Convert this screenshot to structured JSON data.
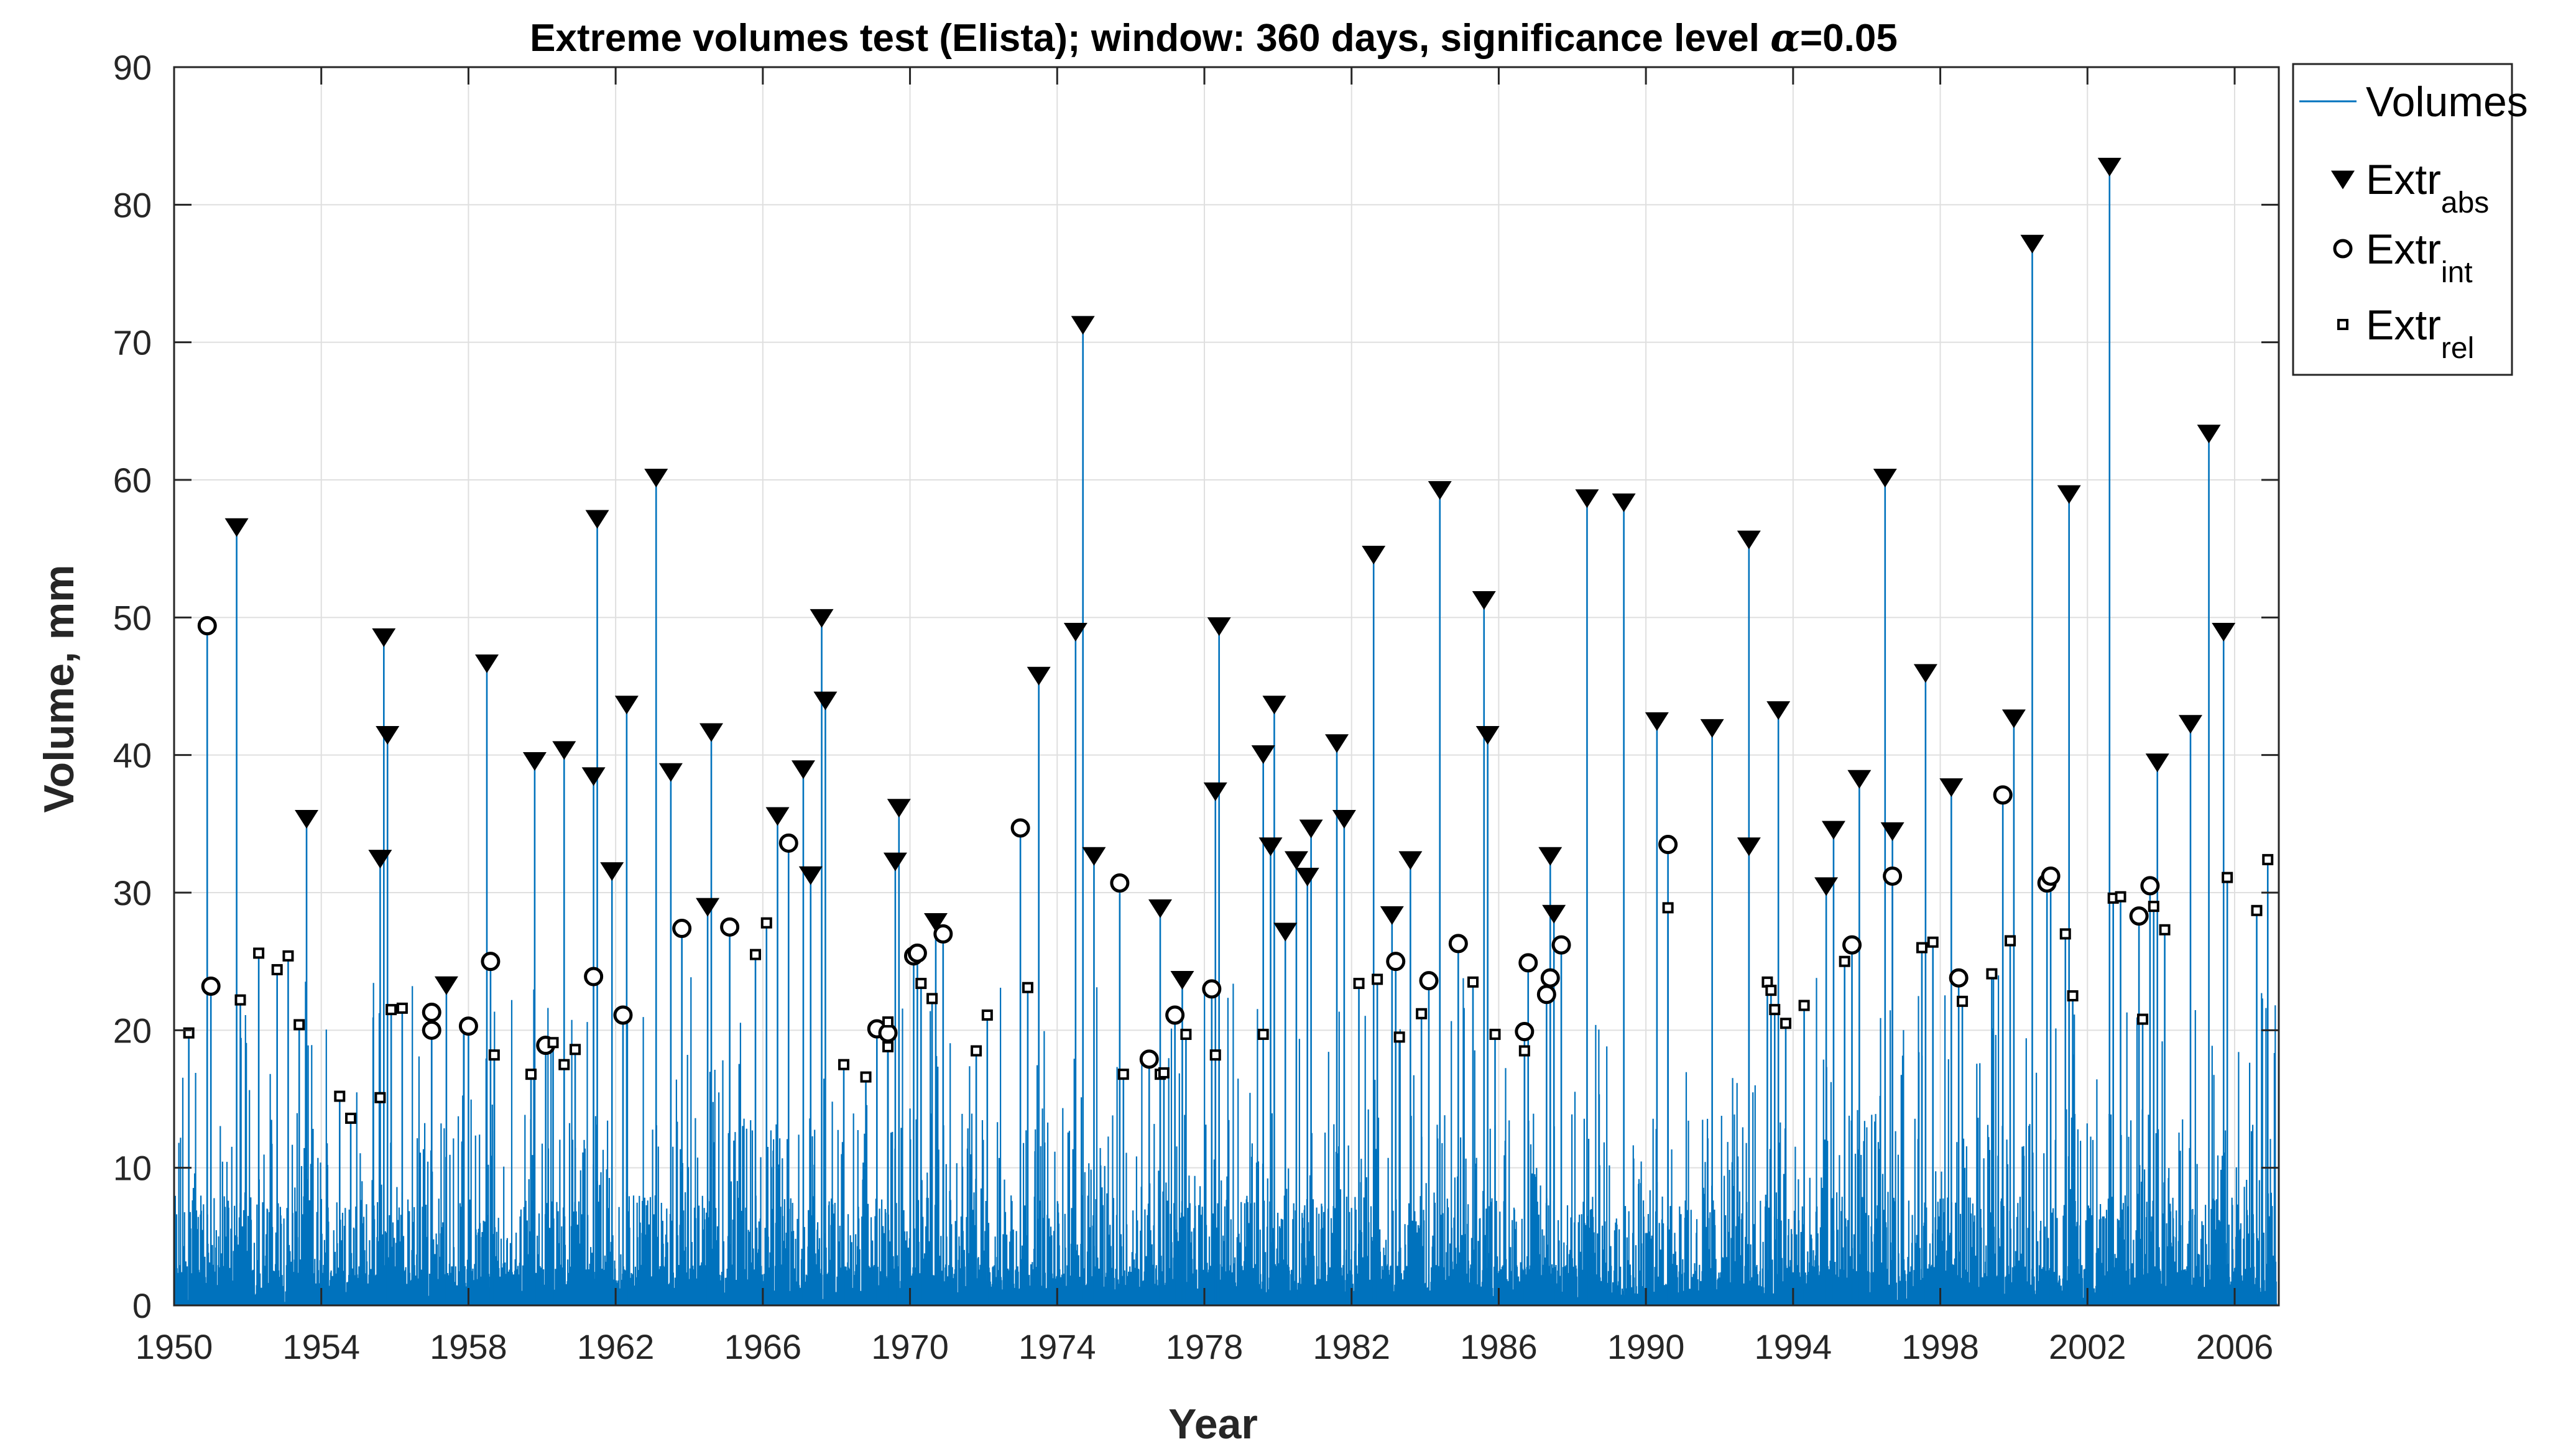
{
  "chart_data": {
    "type": "line",
    "title_parts": [
      "Extreme volumes test (Elista); window: 360 days, significance level ",
      "α",
      "=0.05"
    ],
    "xlabel": "Year",
    "ylabel": "Volume, mm",
    "xlim": [
      1950,
      2007.2
    ],
    "ylim": [
      0,
      90
    ],
    "xticks": [
      1950,
      1954,
      1958,
      1962,
      1966,
      1970,
      1974,
      1978,
      1982,
      1986,
      1990,
      1994,
      1998,
      2002,
      2006
    ],
    "yticks": [
      0,
      10,
      20,
      30,
      40,
      50,
      60,
      70,
      80,
      90
    ],
    "grid": true,
    "legend_position": "outside-top-right",
    "colors": {
      "volumes": "#0072bd",
      "markers": "#000000"
    },
    "legend": [
      {
        "base": "Volumes",
        "sub": "",
        "marker": "line"
      },
      {
        "base": "Extr",
        "sub": "abs",
        "marker": "triangle-down"
      },
      {
        "base": "Extr",
        "sub": "int",
        "marker": "circle"
      },
      {
        "base": "Extr",
        "sub": "rel",
        "marker": "square"
      }
    ],
    "series": [
      {
        "name": "Extr_abs",
        "marker": "triangle-down",
        "points": [
          [
            1951.7,
            56.6
          ],
          [
            1953.6,
            35.4
          ],
          [
            1955.6,
            32.5
          ],
          [
            1955.7,
            48.6
          ],
          [
            1955.8,
            41.5
          ],
          [
            1957.4,
            23.3
          ],
          [
            1958.5,
            46.7
          ],
          [
            1959.8,
            39.6
          ],
          [
            1960.6,
            40.4
          ],
          [
            1961.4,
            38.5
          ],
          [
            1961.5,
            57.2
          ],
          [
            1961.9,
            31.6
          ],
          [
            1962.3,
            43.7
          ],
          [
            1963.1,
            60.2
          ],
          [
            1963.5,
            38.8
          ],
          [
            1964.5,
            29.0
          ],
          [
            1964.6,
            41.7
          ],
          [
            1966.4,
            35.6
          ],
          [
            1967.1,
            39.0
          ],
          [
            1967.3,
            31.3
          ],
          [
            1967.6,
            50.0
          ],
          [
            1967.7,
            44.0
          ],
          [
            1969.6,
            32.3
          ],
          [
            1969.7,
            36.2
          ],
          [
            1970.7,
            27.9
          ],
          [
            1973.5,
            45.8
          ],
          [
            1974.5,
            49.0
          ],
          [
            1974.7,
            71.3
          ],
          [
            1975.0,
            32.7
          ],
          [
            1976.8,
            28.9
          ],
          [
            1977.4,
            23.7
          ],
          [
            1978.3,
            37.4
          ],
          [
            1978.4,
            49.4
          ],
          [
            1979.6,
            40.1
          ],
          [
            1979.8,
            33.4
          ],
          [
            1979.9,
            43.7
          ],
          [
            1980.2,
            27.2
          ],
          [
            1980.5,
            32.4
          ],
          [
            1980.8,
            31.2
          ],
          [
            1980.9,
            34.7
          ],
          [
            1981.6,
            40.9
          ],
          [
            1981.8,
            35.4
          ],
          [
            1982.6,
            54.6
          ],
          [
            1983.1,
            28.4
          ],
          [
            1983.6,
            32.4
          ],
          [
            1984.4,
            59.3
          ],
          [
            1985.6,
            51.3
          ],
          [
            1985.7,
            41.5
          ],
          [
            1987.4,
            32.7
          ],
          [
            1987.5,
            28.5
          ],
          [
            1988.4,
            58.7
          ],
          [
            1989.4,
            58.4
          ],
          [
            1990.3,
            42.5
          ],
          [
            1991.8,
            42.0
          ],
          [
            1992.8,
            33.4
          ],
          [
            1992.8,
            55.7
          ],
          [
            1993.6,
            43.3
          ],
          [
            1994.9,
            30.5
          ],
          [
            1995.1,
            34.6
          ],
          [
            1995.8,
            38.3
          ],
          [
            1996.5,
            60.2
          ],
          [
            1996.7,
            34.5
          ],
          [
            1997.6,
            46.0
          ],
          [
            1998.3,
            37.7
          ],
          [
            2000.0,
            42.7
          ],
          [
            2000.5,
            77.2
          ],
          [
            2001.5,
            59.0
          ],
          [
            2002.6,
            82.8
          ],
          [
            2003.9,
            39.5
          ],
          [
            2004.8,
            42.3
          ],
          [
            2005.3,
            63.4
          ],
          [
            2005.7,
            49.0
          ]
        ]
      },
      {
        "name": "Extr_int",
        "marker": "circle",
        "points": [
          [
            1950.9,
            49.4
          ],
          [
            1951.0,
            23.2
          ],
          [
            1957.0,
            20.0
          ],
          [
            1957.0,
            21.3
          ],
          [
            1958.0,
            20.3
          ],
          [
            1958.6,
            25.0
          ],
          [
            1960.1,
            18.9
          ],
          [
            1961.4,
            23.9
          ],
          [
            1962.2,
            21.1
          ],
          [
            1963.8,
            27.4
          ],
          [
            1965.1,
            27.5
          ],
          [
            1966.7,
            33.6
          ],
          [
            1969.1,
            20.1
          ],
          [
            1969.4,
            19.8
          ],
          [
            1970.1,
            25.4
          ],
          [
            1970.2,
            25.6
          ],
          [
            1970.9,
            27.0
          ],
          [
            1973.0,
            34.7
          ],
          [
            1975.7,
            30.7
          ],
          [
            1976.5,
            17.9
          ],
          [
            1977.2,
            21.1
          ],
          [
            1978.2,
            23.0
          ],
          [
            1983.2,
            25.0
          ],
          [
            1984.1,
            23.6
          ],
          [
            1984.9,
            26.3
          ],
          [
            1986.7,
            19.9
          ],
          [
            1986.8,
            24.9
          ],
          [
            1987.3,
            22.6
          ],
          [
            1987.4,
            23.8
          ],
          [
            1987.7,
            26.2
          ],
          [
            1990.6,
            33.5
          ],
          [
            1995.6,
            26.2
          ],
          [
            1996.7,
            31.2
          ],
          [
            1998.5,
            23.8
          ],
          [
            1999.7,
            37.1
          ],
          [
            2000.9,
            30.7
          ],
          [
            2001.0,
            31.2
          ],
          [
            2003.4,
            28.3
          ],
          [
            2003.7,
            30.5
          ]
        ]
      },
      {
        "name": "Extr_rel",
        "marker": "square",
        "points": [
          [
            1950.4,
            19.8
          ],
          [
            1951.8,
            22.2
          ],
          [
            1952.3,
            25.6
          ],
          [
            1952.8,
            24.4
          ],
          [
            1953.1,
            25.4
          ],
          [
            1953.4,
            20.4
          ],
          [
            1954.5,
            15.2
          ],
          [
            1954.8,
            13.6
          ],
          [
            1955.6,
            15.1
          ],
          [
            1955.9,
            21.5
          ],
          [
            1956.2,
            21.6
          ],
          [
            1958.7,
            18.2
          ],
          [
            1959.7,
            16.8
          ],
          [
            1960.3,
            19.1
          ],
          [
            1960.6,
            17.5
          ],
          [
            1960.9,
            18.6
          ],
          [
            1965.8,
            25.5
          ],
          [
            1966.1,
            27.8
          ],
          [
            1968.2,
            17.5
          ],
          [
            1968.8,
            16.6
          ],
          [
            1969.4,
            18.8
          ],
          [
            1969.4,
            20.6
          ],
          [
            1970.3,
            23.4
          ],
          [
            1970.6,
            22.3
          ],
          [
            1971.8,
            18.5
          ],
          [
            1972.1,
            21.1
          ],
          [
            1973.2,
            23.1
          ],
          [
            1975.8,
            16.8
          ],
          [
            1976.8,
            16.8
          ],
          [
            1976.9,
            16.9
          ],
          [
            1977.5,
            19.7
          ],
          [
            1978.3,
            18.2
          ],
          [
            1979.6,
            19.7
          ],
          [
            1982.2,
            23.4
          ],
          [
            1982.7,
            23.7
          ],
          [
            1983.3,
            19.5
          ],
          [
            1983.9,
            21.2
          ],
          [
            1985.3,
            23.5
          ],
          [
            1985.9,
            19.7
          ],
          [
            1986.7,
            18.5
          ],
          [
            1990.6,
            28.9
          ],
          [
            1993.3,
            23.5
          ],
          [
            1993.4,
            22.9
          ],
          [
            1993.5,
            21.5
          ],
          [
            1993.8,
            20.5
          ],
          [
            1994.3,
            21.8
          ],
          [
            1995.4,
            25.0
          ],
          [
            1997.5,
            26.0
          ],
          [
            1997.8,
            26.4
          ],
          [
            1998.6,
            22.1
          ],
          [
            1999.4,
            24.1
          ],
          [
            1999.9,
            26.5
          ],
          [
            2001.4,
            27.0
          ],
          [
            2001.6,
            22.5
          ],
          [
            2002.7,
            29.6
          ],
          [
            2002.9,
            29.7
          ],
          [
            2003.5,
            20.8
          ],
          [
            2003.8,
            29.0
          ],
          [
            2004.1,
            27.3
          ],
          [
            2005.8,
            31.1
          ],
          [
            2006.6,
            28.7
          ],
          [
            2006.9,
            32.4
          ]
        ]
      }
    ]
  }
}
